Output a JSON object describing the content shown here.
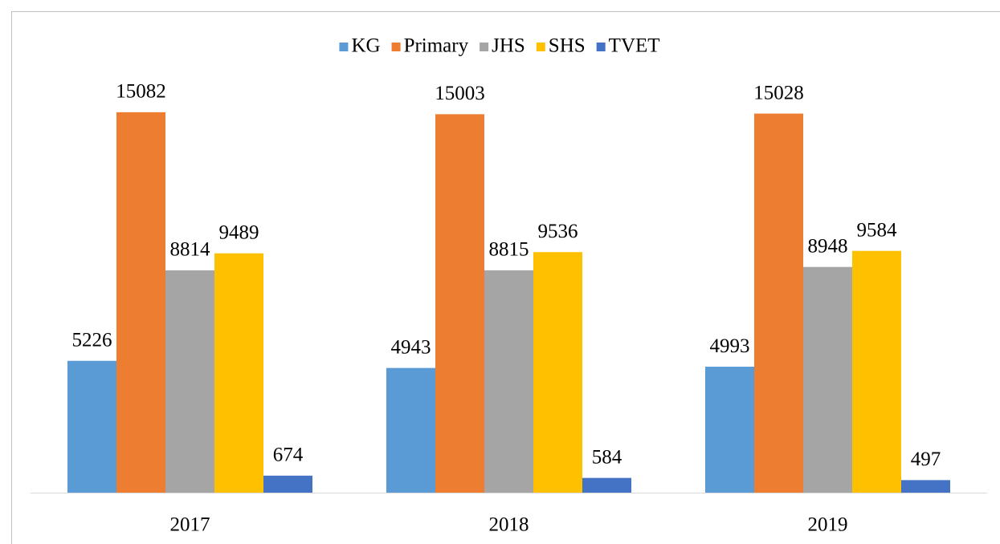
{
  "chart_data": {
    "type": "bar",
    "categories": [
      "2017",
      "2018",
      "2019"
    ],
    "series": [
      {
        "name": "KG",
        "color": "#5b9bd5",
        "values": [
          5226,
          4943,
          4993
        ]
      },
      {
        "name": "Primary",
        "color": "#ed7d31",
        "values": [
          15082,
          15003,
          15028
        ]
      },
      {
        "name": "JHS",
        "color": "#a5a5a5",
        "values": [
          8814,
          8815,
          8948
        ]
      },
      {
        "name": "SHS",
        "color": "#ffc000",
        "values": [
          9489,
          9536,
          9584
        ]
      },
      {
        "name": "TVET",
        "color": "#4472c4",
        "values": [
          674,
          584,
          497
        ]
      }
    ],
    "ylim": [
      0,
      16000
    ],
    "legend": "top"
  }
}
